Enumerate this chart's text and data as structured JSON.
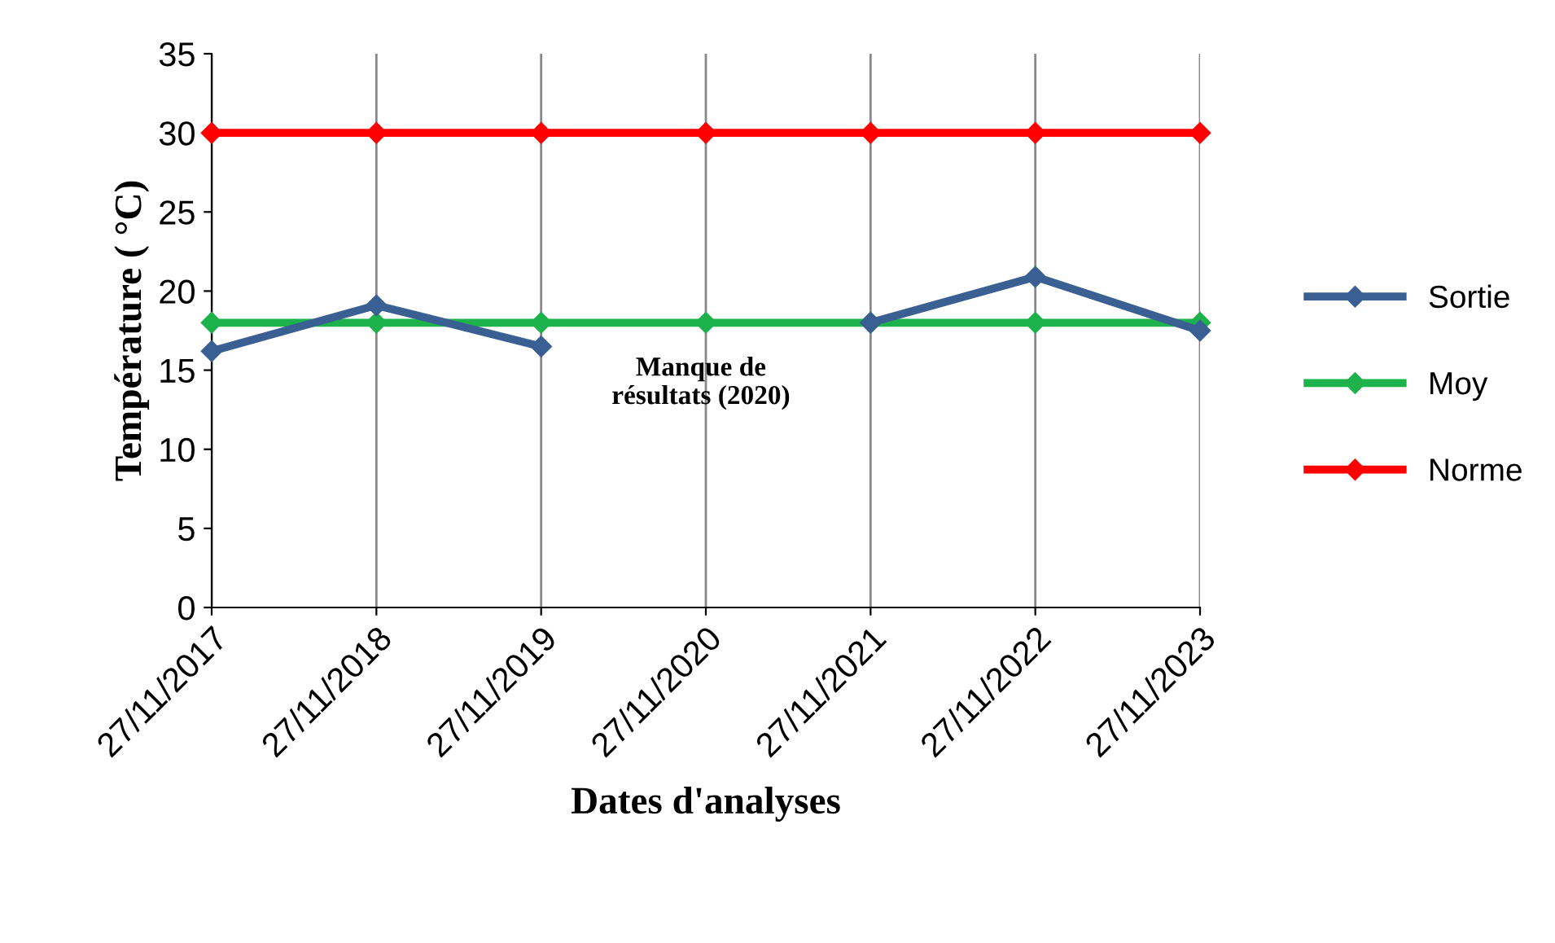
{
  "chart_data": {
    "type": "line",
    "xlabel": "Dates d'analyses",
    "ylabel": "Température ( °C)",
    "categories": [
      "27/11/2017",
      "27/11/2018",
      "27/11/2019",
      "27/11/2020",
      "27/11/2021",
      "27/11/2022",
      "27/11/2023"
    ],
    "series": [
      {
        "name": "Sortie",
        "color": "#3a5f93",
        "values": [
          16.2,
          19.1,
          16.5,
          null,
          18,
          20.9,
          17.5
        ]
      },
      {
        "name": "Moy",
        "color": "#1db24b",
        "values": [
          18,
          18,
          18,
          18,
          18,
          18,
          18
        ]
      },
      {
        "name": "Norme",
        "color": "#ff0000",
        "values": [
          30,
          30,
          30,
          30,
          30,
          30,
          30
        ]
      }
    ],
    "ylim": [
      0,
      35
    ],
    "yticks": [
      0,
      5,
      10,
      15,
      20,
      25,
      30,
      35
    ],
    "grid": "x",
    "legend": "right",
    "marker": "diamond",
    "line_style": "solid",
    "annotations": [
      "Manque de\nrésultats (2020)"
    ]
  }
}
